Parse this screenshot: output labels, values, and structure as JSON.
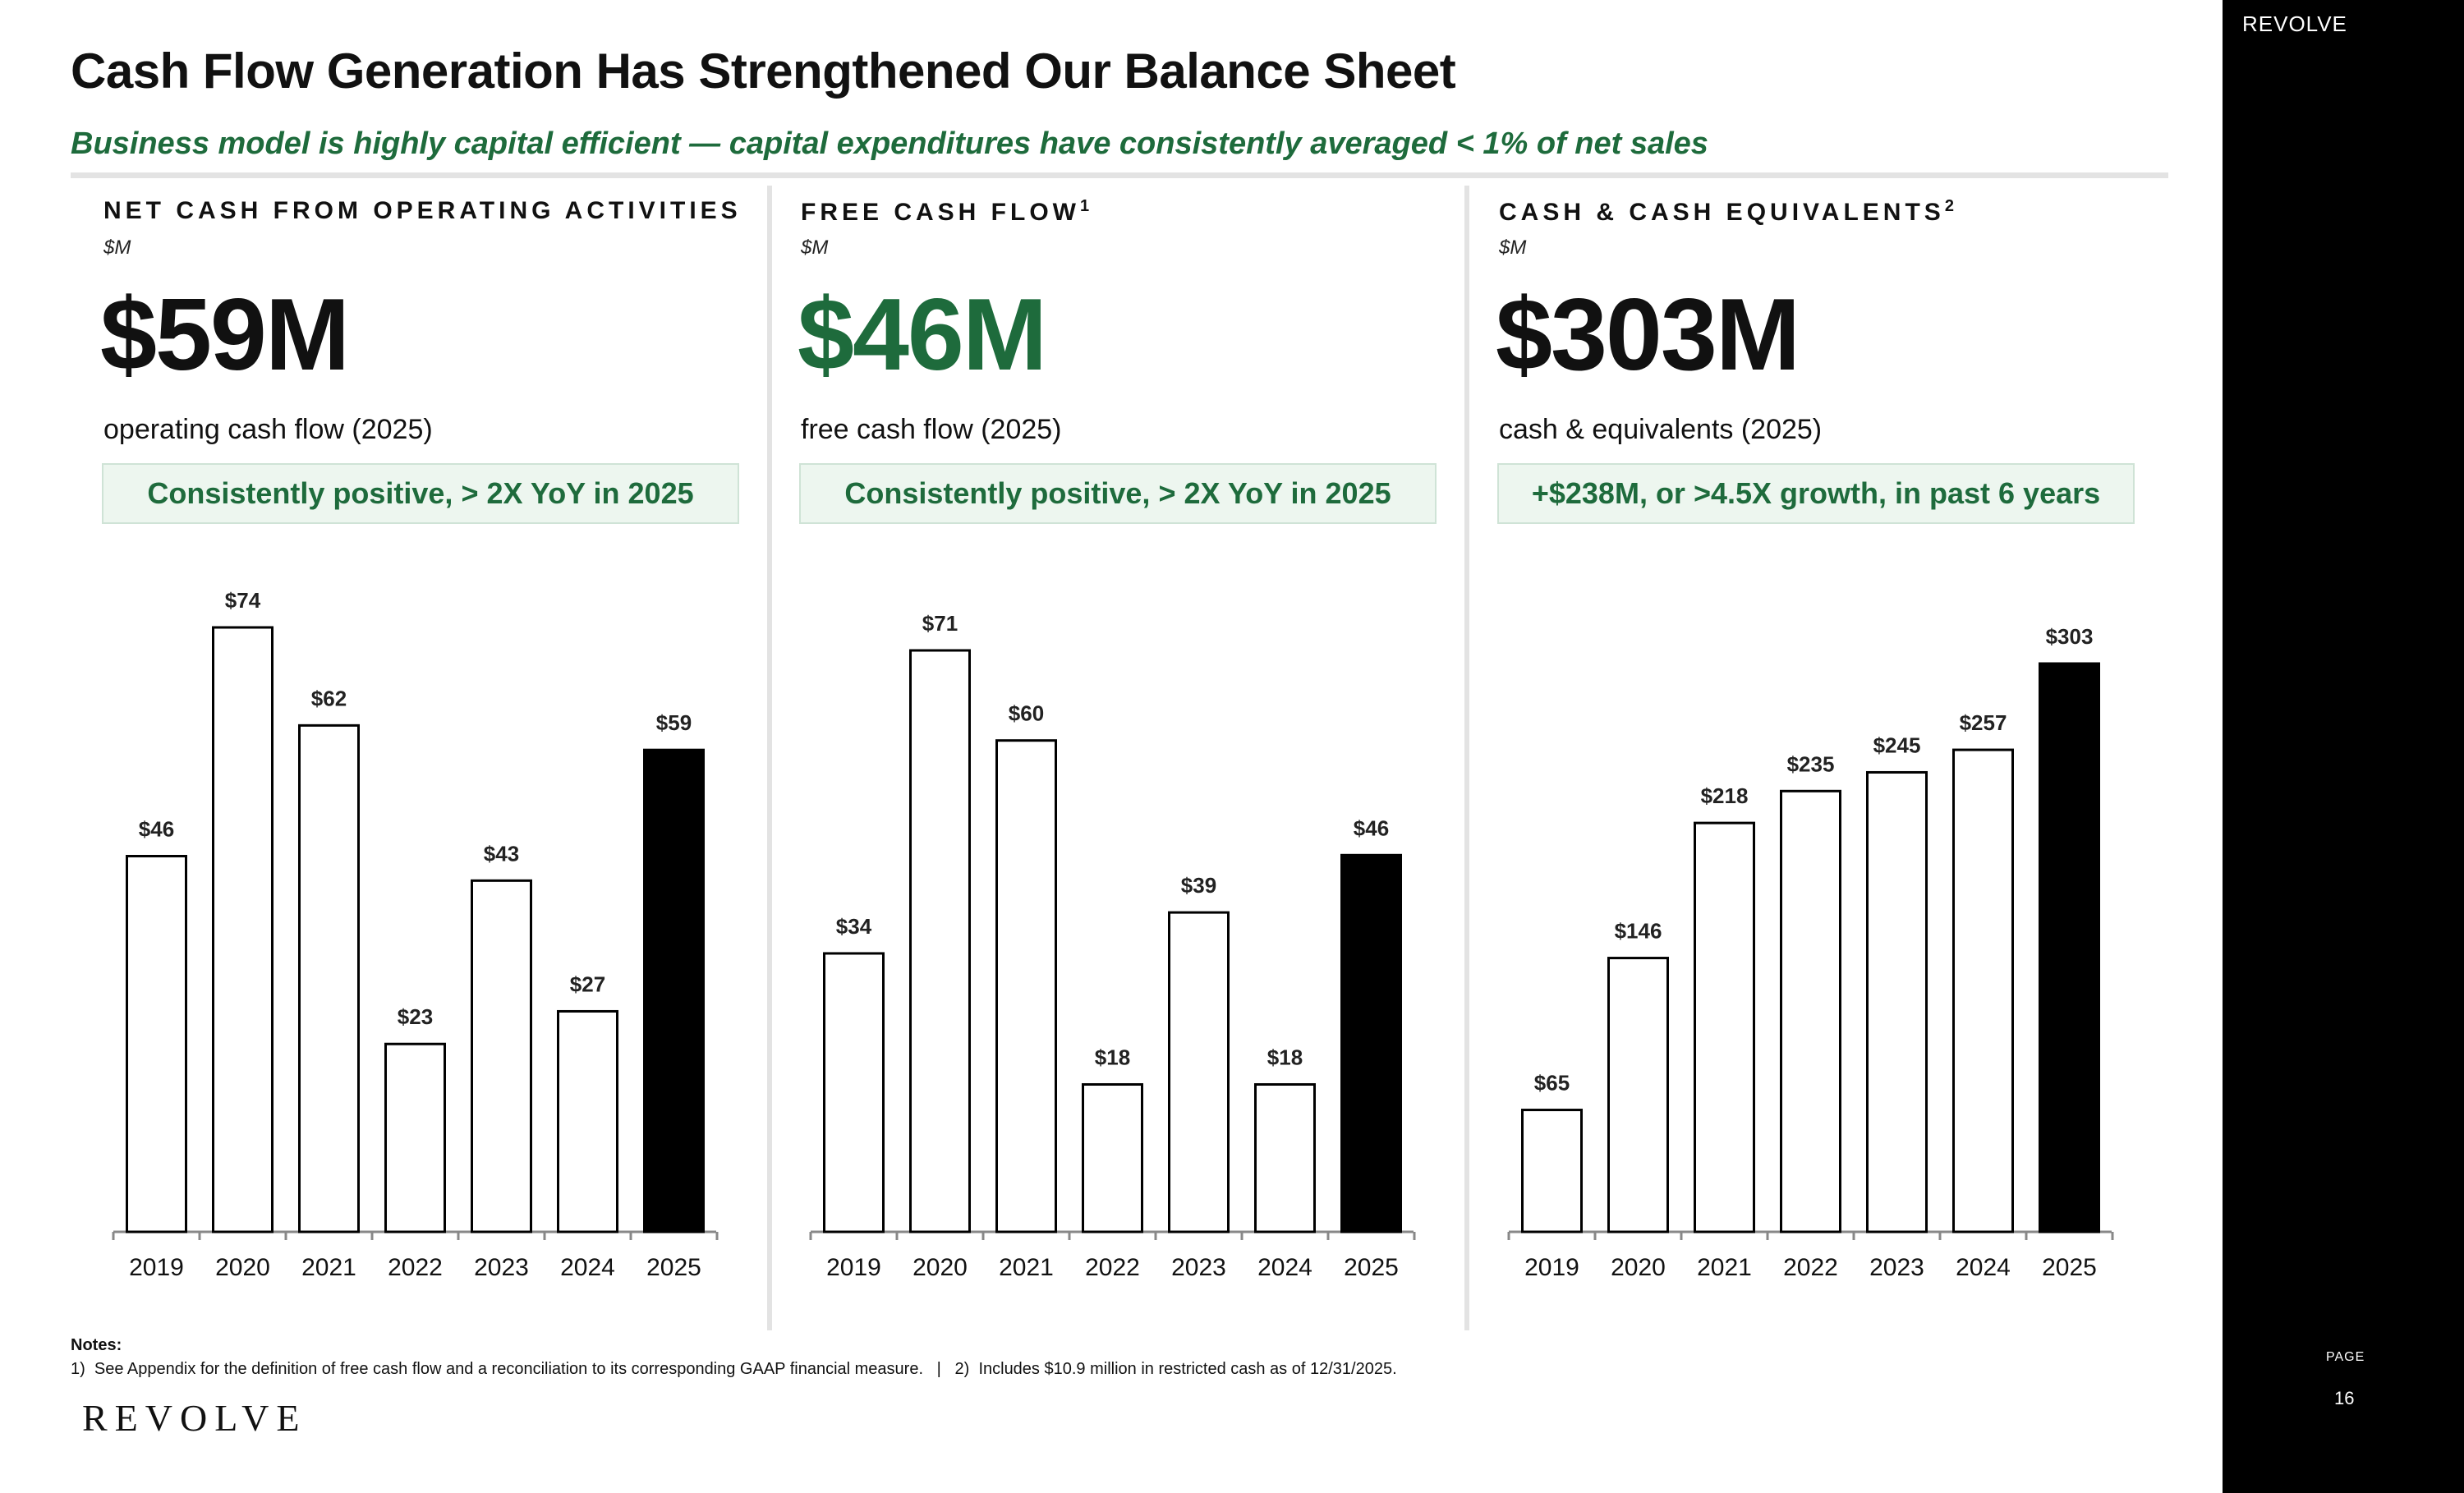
{
  "header": {
    "title": "Cash Flow Generation Has Strengthened Our Balance Sheet",
    "subtitle": "Business model is highly capital efficient — capital expenditures have consistently averaged < 1% of net sales"
  },
  "colors": {
    "accent_green": "#1e6b3c",
    "highlight_bar": "#000000",
    "bar_outline": "#000000",
    "callout_bg": "#edf6ef"
  },
  "panels": [
    {
      "heading": "NET CASH FROM OPERATING ACTIVITIES",
      "heading_sup": "",
      "unit": "$M",
      "big_value": "$59M",
      "caption": "operating cash flow (2025)",
      "callout": "Consistently positive, > 2X YoY in 2025"
    },
    {
      "heading": "FREE CASH FLOW",
      "heading_sup": "1",
      "unit": "$M",
      "big_value": "$46M",
      "caption": "free cash flow (2025)",
      "callout": "Consistently positive, > 2X YoY in 2025"
    },
    {
      "heading": "CASH & CASH EQUIVALENTS",
      "heading_sup": "2",
      "unit": "$M",
      "big_value": "$303M",
      "caption": "cash & equivalents (2025)",
      "callout": "+$238M, or >4.5X growth, in past 6 years"
    }
  ],
  "chart_data": [
    {
      "type": "bar",
      "title": "NET CASH FROM OPERATING ACTIVITIES",
      "ylabel": "$M",
      "categories": [
        "2019",
        "2020",
        "2021",
        "2022",
        "2023",
        "2024",
        "2025"
      ],
      "values": [
        46,
        74,
        62,
        23,
        43,
        27,
        59
      ],
      "labels": [
        "$46",
        "$74",
        "$62",
        "$23",
        "$43",
        "$27",
        "$59"
      ],
      "highlight_index": 6,
      "ylim": [
        0,
        80
      ],
      "grid": false,
      "legend": "none"
    },
    {
      "type": "bar",
      "title": "FREE CASH FLOW",
      "ylabel": "$M",
      "categories": [
        "2019",
        "2020",
        "2021",
        "2022",
        "2023",
        "2024",
        "2025"
      ],
      "values": [
        34,
        71,
        60,
        18,
        39,
        18,
        46
      ],
      "labels": [
        "$34",
        "$71",
        "$60",
        "$18",
        "$39",
        "$18",
        "$46"
      ],
      "highlight_index": 6,
      "ylim": [
        0,
        80
      ],
      "grid": false,
      "legend": "none"
    },
    {
      "type": "bar",
      "title": "CASH & CASH EQUIVALENTS",
      "ylabel": "$M",
      "categories": [
        "2019",
        "2020",
        "2021",
        "2022",
        "2023",
        "2024",
        "2025"
      ],
      "values": [
        65,
        146,
        218,
        235,
        245,
        257,
        303
      ],
      "labels": [
        "$65",
        "$146",
        "$218",
        "$235",
        "$245",
        "$257",
        "$303"
      ],
      "highlight_index": 6,
      "ylim": [
        0,
        400
      ],
      "grid": false,
      "legend": "none"
    }
  ],
  "notes": {
    "heading": "Notes:",
    "text": "1)  See Appendix for the definition of free cash flow and a reconciliation to its corresponding GAAP financial measure.   |   2)  Includes $10.9 million in restricted cash as of 12/31/2025."
  },
  "footer": {
    "logo_text": "REVOLVE"
  },
  "sidebar": {
    "brand": "REVOLVE",
    "page_label": "PAGE",
    "page_number": "16"
  }
}
